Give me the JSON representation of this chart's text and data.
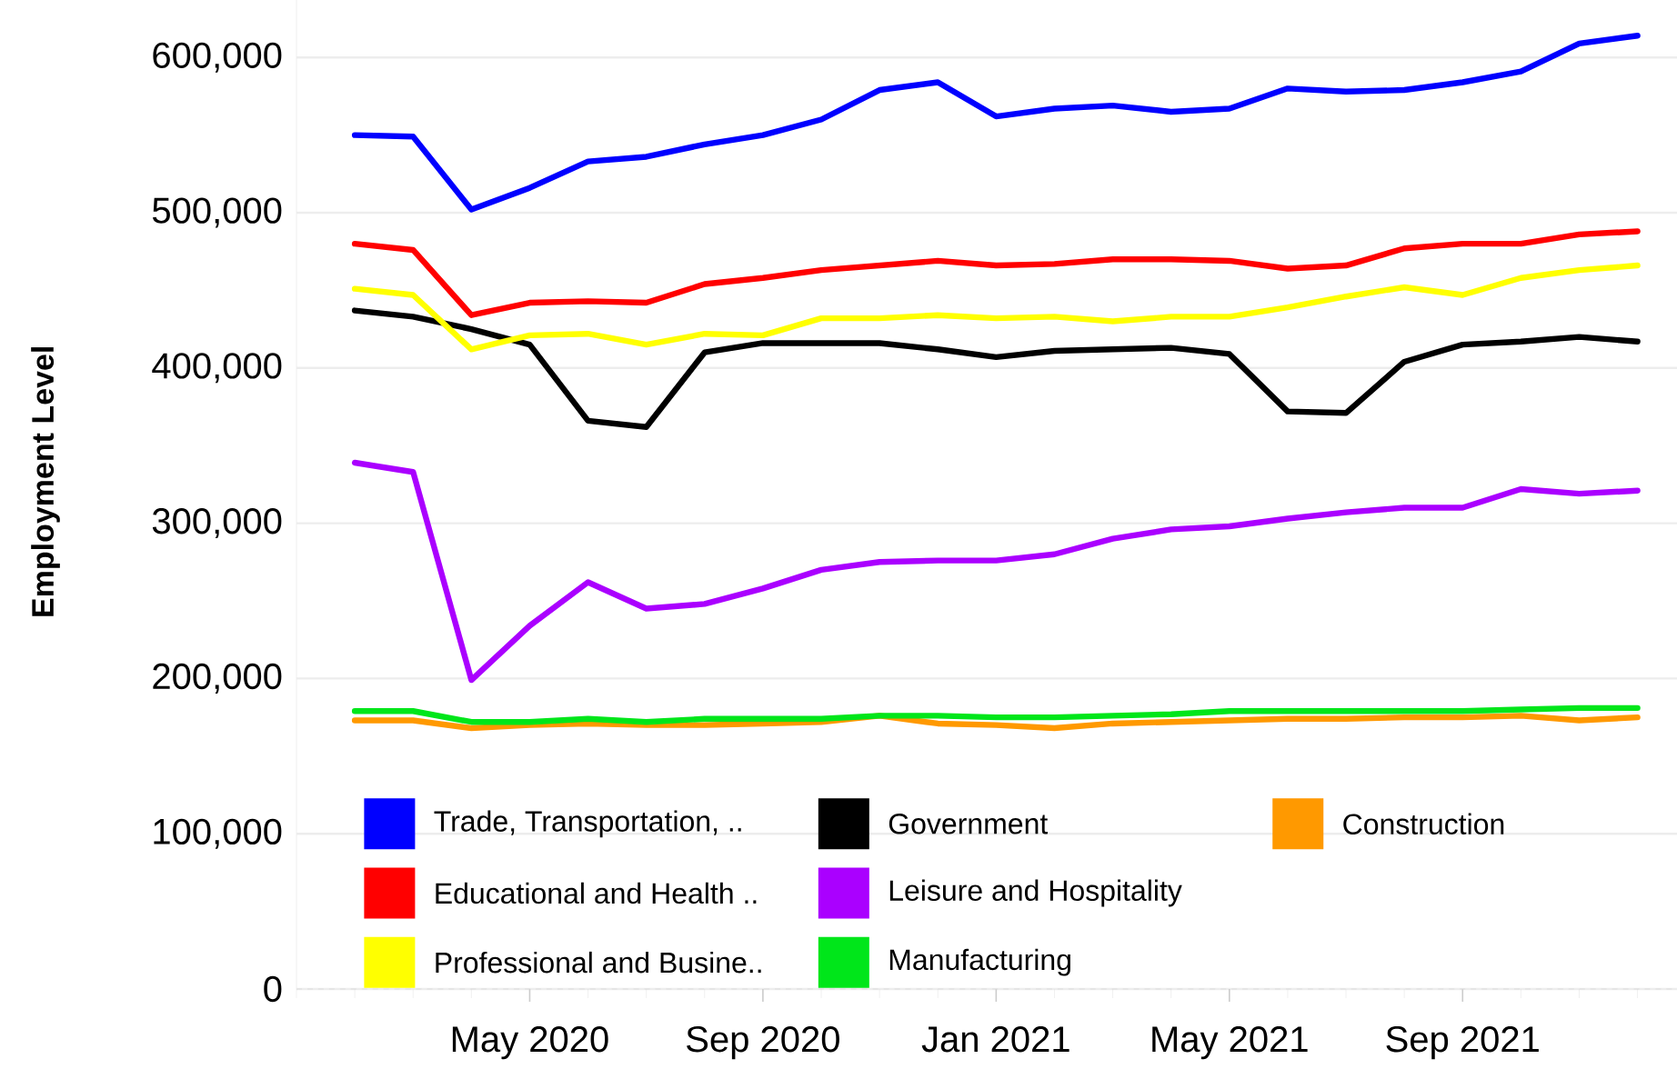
{
  "chart_data": {
    "type": "line",
    "ylabel": "Employment Level",
    "x": [
      "2020-02",
      "2020-03",
      "2020-04",
      "2020-05",
      "2020-06",
      "2020-07",
      "2020-08",
      "2020-09",
      "2020-10",
      "2020-11",
      "2020-12",
      "2021-01",
      "2021-02",
      "2021-03",
      "2021-04",
      "2021-05",
      "2021-06",
      "2021-07",
      "2021-08",
      "2021-09",
      "2021-10",
      "2021-11",
      "2021-12"
    ],
    "series": [
      {
        "name": "Trade, Transportation, ..",
        "color": "#0000ff",
        "values": [
          550000,
          549000,
          502000,
          516000,
          533000,
          536000,
          544000,
          550000,
          560000,
          579000,
          584000,
          562000,
          567000,
          569000,
          565000,
          567000,
          580000,
          578000,
          579000,
          584000,
          591000,
          609000,
          614000
        ]
      },
      {
        "name": "Educational and Health ..",
        "color": "#ff0000",
        "values": [
          480000,
          476000,
          434000,
          442000,
          443000,
          442000,
          454000,
          458000,
          463000,
          466000,
          469000,
          466000,
          467000,
          470000,
          470000,
          469000,
          464000,
          466000,
          477000,
          480000,
          480000,
          486000,
          488000
        ]
      },
      {
        "name": "Professional and Busine..",
        "color": "#ffff00",
        "values": [
          451000,
          447000,
          412000,
          421000,
          422000,
          415000,
          422000,
          421000,
          432000,
          432000,
          434000,
          432000,
          433000,
          430000,
          433000,
          433000,
          439000,
          446000,
          452000,
          447000,
          458000,
          463000,
          466000
        ]
      },
      {
        "name": "Government",
        "color": "#000000",
        "values": [
          437000,
          433000,
          425000,
          415000,
          366000,
          362000,
          410000,
          416000,
          416000,
          416000,
          412000,
          407000,
          411000,
          412000,
          413000,
          409000,
          372000,
          371000,
          404000,
          415000,
          417000,
          420000,
          417000
        ]
      },
      {
        "name": "Leisure and Hospitality",
        "color": "#aa00ff",
        "values": [
          339000,
          333000,
          199000,
          234000,
          262000,
          245000,
          248000,
          258000,
          270000,
          275000,
          276000,
          276000,
          280000,
          290000,
          296000,
          298000,
          303000,
          307000,
          310000,
          310000,
          322000,
          319000,
          321000
        ]
      },
      {
        "name": "Manufacturing",
        "color": "#00e61a",
        "values": [
          179000,
          179000,
          172000,
          172000,
          174000,
          172000,
          174000,
          174000,
          174000,
          176000,
          176000,
          175000,
          175000,
          176000,
          177000,
          179000,
          179000,
          179000,
          179000,
          179000,
          180000,
          181000,
          181000
        ]
      },
      {
        "name": "Construction",
        "color": "#ff9900",
        "values": [
          173000,
          173000,
          168000,
          170000,
          171000,
          170000,
          170000,
          171000,
          172000,
          176000,
          171000,
          170000,
          168000,
          171000,
          172000,
          173000,
          174000,
          174000,
          175000,
          175000,
          176000,
          173000,
          175000
        ]
      }
    ],
    "xlim": [
      "2020-01",
      "2021-12-22"
    ],
    "xticks": [
      {
        "value": "2020-01",
        "label": null
      },
      {
        "value": "2020-02",
        "label": null
      },
      {
        "value": "2020-03",
        "label": null
      },
      {
        "value": "2020-04",
        "label": null
      },
      {
        "value": "2020-05",
        "label": "May 2020"
      },
      {
        "value": "2020-06",
        "label": null
      },
      {
        "value": "2020-07",
        "label": null
      },
      {
        "value": "2020-08",
        "label": null
      },
      {
        "value": "2020-09",
        "label": "Sep 2020"
      },
      {
        "value": "2020-10",
        "label": null
      },
      {
        "value": "2020-11",
        "label": null
      },
      {
        "value": "2020-12",
        "label": null
      },
      {
        "value": "2021-01",
        "label": "Jan 2021"
      },
      {
        "value": "2021-02",
        "label": null
      },
      {
        "value": "2021-03",
        "label": null
      },
      {
        "value": "2021-04",
        "label": null
      },
      {
        "value": "2021-05",
        "label": "May 2021"
      },
      {
        "value": "2021-06",
        "label": null
      },
      {
        "value": "2021-07",
        "label": null
      },
      {
        "value": "2021-08",
        "label": null
      },
      {
        "value": "2021-09",
        "label": "Sep 2021"
      },
      {
        "value": "2021-10",
        "label": null
      },
      {
        "value": "2021-11",
        "label": null
      },
      {
        "value": "2021-12",
        "label": null
      }
    ],
    "ylim": [
      0,
      637000
    ],
    "yticks": [
      0,
      {
        "value": 100000,
        "label": "100,000"
      },
      {
        "value": 200000,
        "label": "200,000"
      },
      {
        "value": 300000,
        "label": "300,000"
      },
      {
        "value": 400000,
        "label": "400,000"
      },
      {
        "value": 500000,
        "label": "500,000"
      },
      {
        "value": 600000,
        "label": "600,000"
      }
    ],
    "grid": "y",
    "legend": "bottom left",
    "marker": "none",
    "line_style": "solid"
  }
}
